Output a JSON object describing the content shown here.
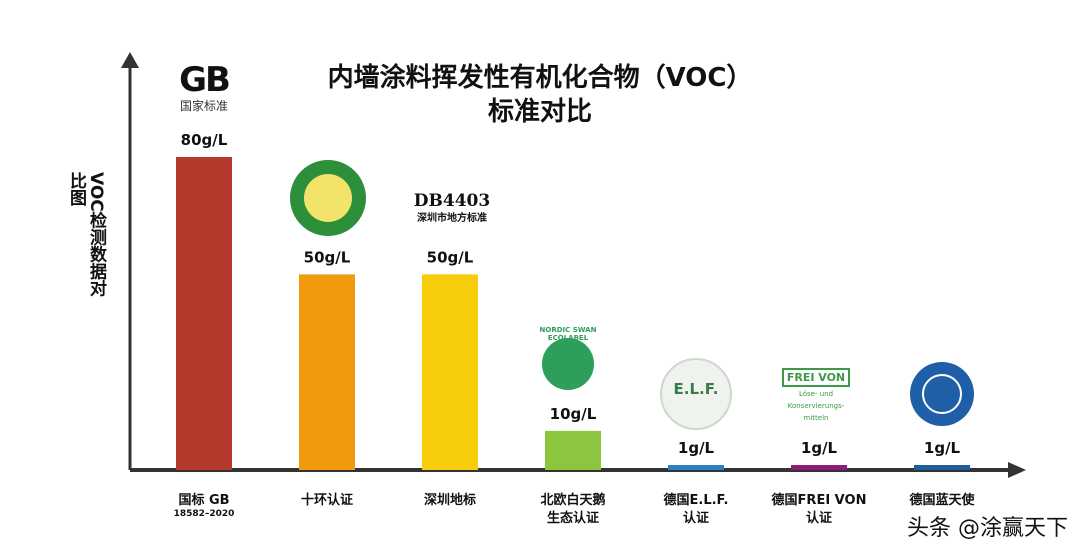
{
  "chart_data": {
    "type": "bar",
    "title": "内墙涂料挥发性有机化合物（VOC）",
    "title_line2": "标准对比",
    "ylabel": "VOC检测数据对比图",
    "categories": [
      [
        "国标 GB",
        "18582–2020"
      ],
      [
        "十环认证"
      ],
      [
        "深圳地标"
      ],
      [
        "北欧白天鹅",
        "生态认证"
      ],
      [
        "德国E.L.F.",
        "认证"
      ],
      [
        "德国FREI VON",
        "认证"
      ],
      [
        "德国蓝天使"
      ]
    ],
    "values": [
      80,
      50,
      50,
      10,
      1,
      1,
      1
    ],
    "value_labels": [
      "80g/L",
      "50g/L",
      "50g/L",
      "10g/L",
      "1g/L",
      "1g/L",
      "1g/L"
    ],
    "colors": [
      "#b33a2c",
      "#f29a0f",
      "#f7cc0a",
      "#8cc63e",
      "#2f7fc1",
      "#8b1f7a",
      "#1f5c9a"
    ],
    "ylim": [
      0,
      80
    ],
    "grid": false,
    "legend": "none"
  },
  "logos": {
    "gb_mark": "GB",
    "gb_text": "国家标准",
    "db_mark": "DB4403",
    "db_text": "深圳市地方标准",
    "nordic_text": "NORDIC SWAN ECOLABEL",
    "elf_text": "E.L.F.",
    "frei_title": "FREI VON",
    "frei_text1": "Löse- und",
    "frei_text2": "Konservierungs-",
    "frei_text3": "mitteln"
  },
  "watermark": "头条 @涂赢天下"
}
